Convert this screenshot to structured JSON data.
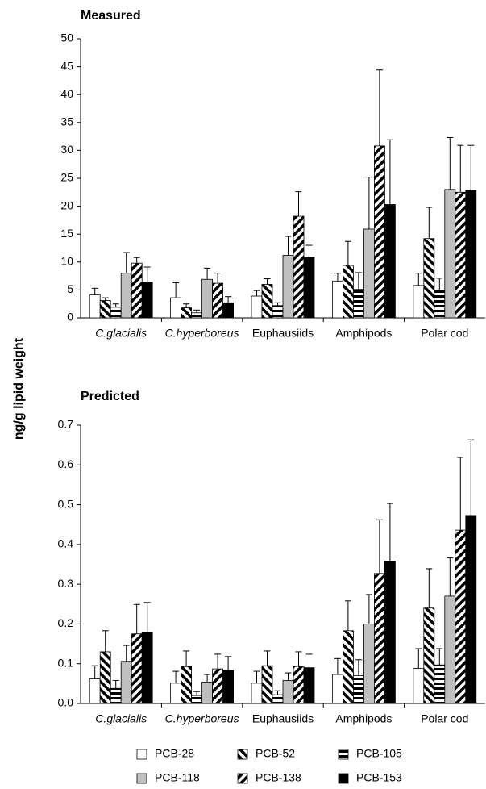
{
  "y_label": "ng/g lipid weight",
  "chart_data": [
    {
      "type": "bar",
      "title": "Measured",
      "categories": [
        "C.glacialis",
        "C.hyperboreus",
        "Euphausiids",
        "Amphipods",
        "Polar cod"
      ],
      "category_styles": [
        "italic",
        "italic",
        "normal",
        "normal",
        "normal"
      ],
      "ylim": [
        0,
        50
      ],
      "yticks": [
        0,
        5,
        10,
        15,
        20,
        25,
        30,
        35,
        40,
        45,
        50
      ],
      "series": [
        {
          "name": "PCB-28",
          "fill": "white",
          "values": [
            4.1,
            3.6,
            3.9,
            6.6,
            5.8
          ],
          "errors": [
            1.2,
            2.7,
            1.0,
            1.4,
            2.2
          ]
        },
        {
          "name": "PCB-52",
          "fill": "hatch-back",
          "values": [
            3.1,
            1.8,
            6.0,
            9.4,
            14.2
          ],
          "errors": [
            0.5,
            0.7,
            1.0,
            4.3,
            5.6
          ]
        },
        {
          "name": "PCB-105",
          "fill": "hatch-horizontal",
          "values": [
            1.9,
            0.9,
            2.2,
            5.1,
            5.0
          ],
          "errors": [
            0.6,
            0.5,
            0.5,
            3.0,
            2.1
          ]
        },
        {
          "name": "PCB-118",
          "fill": "gray",
          "values": [
            8.0,
            6.9,
            11.2,
            15.9,
            23.0
          ],
          "errors": [
            3.7,
            2.0,
            3.4,
            9.3,
            9.3
          ]
        },
        {
          "name": "PCB-138",
          "fill": "hatch-forward",
          "values": [
            9.8,
            6.2,
            18.2,
            30.8,
            22.5
          ],
          "errors": [
            1.0,
            1.8,
            4.4,
            13.6,
            8.4
          ]
        },
        {
          "name": "PCB-153",
          "fill": "black",
          "values": [
            6.4,
            2.7,
            10.9,
            20.3,
            22.8
          ],
          "errors": [
            2.7,
            1.1,
            2.1,
            11.6,
            8.1
          ]
        }
      ]
    },
    {
      "type": "bar",
      "title": "Predicted",
      "categories": [
        "C.glacialis",
        "C.hyperboreus",
        "Euphausiids",
        "Amphipods",
        "Polar cod"
      ],
      "category_styles": [
        "italic",
        "italic",
        "normal",
        "normal",
        "normal"
      ],
      "ylim": [
        0,
        0.7
      ],
      "yticks": [
        {
          "value": 0,
          "label": "0.0"
        },
        0.1,
        0.2,
        0.3,
        0.4,
        0.5,
        0.6,
        0.7
      ],
      "series": [
        {
          "name": "PCB-28",
          "fill": "white",
          "values": [
            0.062,
            0.051,
            0.051,
            0.073,
            0.088
          ],
          "errors": [
            0.033,
            0.03,
            0.03,
            0.04,
            0.05
          ]
        },
        {
          "name": "PCB-52",
          "fill": "hatch-back",
          "values": [
            0.13,
            0.093,
            0.095,
            0.183,
            0.24
          ],
          "errors": [
            0.053,
            0.039,
            0.037,
            0.075,
            0.099
          ]
        },
        {
          "name": "PCB-105",
          "fill": "hatch-horizontal",
          "values": [
            0.038,
            0.02,
            0.022,
            0.07,
            0.097
          ],
          "errors": [
            0.02,
            0.01,
            0.01,
            0.04,
            0.041
          ]
        },
        {
          "name": "PCB-118",
          "fill": "gray",
          "values": [
            0.106,
            0.054,
            0.058,
            0.2,
            0.27
          ],
          "errors": [
            0.04,
            0.019,
            0.019,
            0.074,
            0.096
          ]
        },
        {
          "name": "PCB-138",
          "fill": "hatch-forward",
          "values": [
            0.175,
            0.087,
            0.093,
            0.327,
            0.436
          ],
          "errors": [
            0.074,
            0.037,
            0.037,
            0.135,
            0.183
          ]
        },
        {
          "name": "PCB-153",
          "fill": "black",
          "values": [
            0.178,
            0.083,
            0.09,
            0.358,
            0.473
          ],
          "errors": [
            0.076,
            0.035,
            0.034,
            0.145,
            0.19
          ]
        }
      ]
    }
  ]
}
